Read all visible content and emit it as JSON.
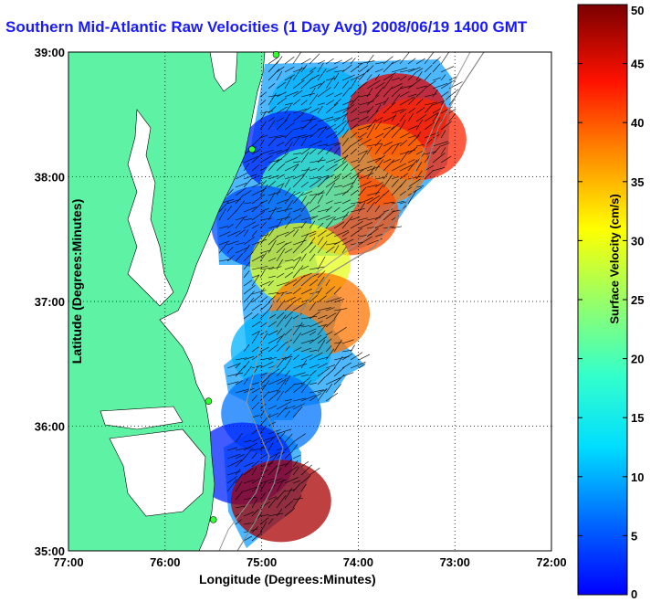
{
  "title": "Southern Mid-Atlantic Raw Velocities (1 Day Avg) 2008/06/19 1400 GMT",
  "chart_data": {
    "type": "heatmap",
    "xlabel": "Longitude (Degrees:Minutes)",
    "ylabel": "Latitude (Degrees:Minutes)",
    "colorbar_label": "Surface Velocity (cm/s)",
    "x_ticks": [
      "77:00",
      "76:00",
      "75:00",
      "74:00",
      "73:00",
      "72:00"
    ],
    "x_tick_values": [
      -77,
      -76,
      -75,
      -74,
      -73,
      -72
    ],
    "y_ticks": [
      "35:00",
      "36:00",
      "37:00",
      "38:00",
      "39:00"
    ],
    "y_tick_values": [
      35,
      36,
      37,
      38,
      39
    ],
    "xlim": [
      -77,
      -72
    ],
    "ylim": [
      35,
      39
    ],
    "colorbar_ticks": [
      0,
      5,
      10,
      15,
      20,
      25,
      30,
      35,
      40,
      45,
      50
    ],
    "colorbar_range": [
      0,
      50
    ],
    "grid": true,
    "colormap": "jet",
    "land_color": "#5ef2a4",
    "velocity_field": [
      {
        "lon": -74.4,
        "lat": 38.55,
        "speed": 15
      },
      {
        "lon": -73.6,
        "lat": 38.5,
        "speed": 45
      },
      {
        "lon": -73.4,
        "lat": 38.3,
        "speed": 42
      },
      {
        "lon": -73.8,
        "lat": 38.1,
        "speed": 38
      },
      {
        "lon": -74.1,
        "lat": 37.7,
        "speed": 40
      },
      {
        "lon": -74.7,
        "lat": 38.2,
        "speed": 8
      },
      {
        "lon": -74.5,
        "lat": 37.9,
        "speed": 22
      },
      {
        "lon": -75.0,
        "lat": 37.6,
        "speed": 10
      },
      {
        "lon": -74.6,
        "lat": 37.3,
        "speed": 30
      },
      {
        "lon": -74.4,
        "lat": 36.9,
        "speed": 38
      },
      {
        "lon": -74.8,
        "lat": 36.6,
        "speed": 15
      },
      {
        "lon": -74.9,
        "lat": 36.1,
        "speed": 12
      },
      {
        "lon": -75.2,
        "lat": 35.7,
        "speed": 8
      },
      {
        "lon": -74.8,
        "lat": 35.4,
        "speed": 48
      }
    ],
    "stations": [
      {
        "lon": -74.85,
        "lat": 38.98
      },
      {
        "lon": -75.1,
        "lat": 38.22
      },
      {
        "lon": -75.55,
        "lat": 36.2
      },
      {
        "lon": -75.5,
        "lat": 35.25
      }
    ]
  }
}
